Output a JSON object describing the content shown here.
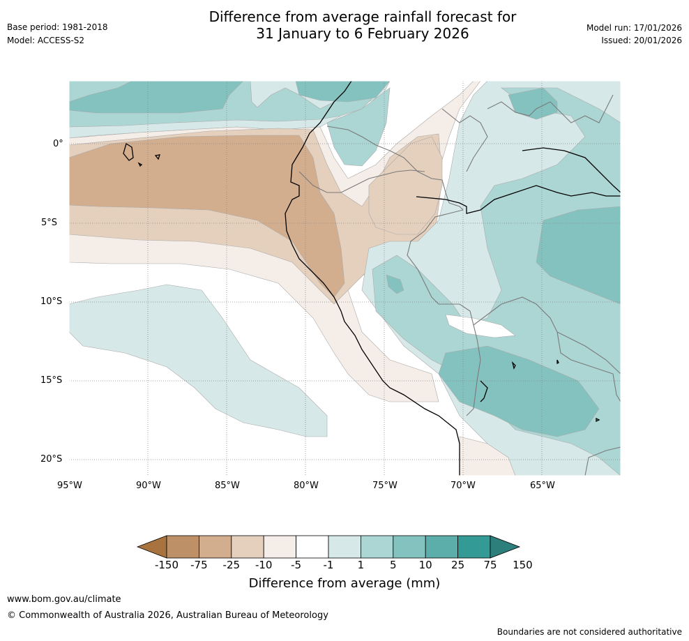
{
  "header": {
    "title_line1": "Difference from average rainfall forecast for",
    "title_line2": "31 January to 6 February 2026",
    "base_period": "Base period: 1981-2018",
    "model": "Model: ACCESS-S2",
    "model_run": "Model run: 17/01/2026",
    "issued": "Issued: 20/01/2026"
  },
  "map": {
    "region": "Western South America / Eastern Pacific",
    "lat_labels": [
      "0°",
      "5°S",
      "10°S",
      "15°S",
      "20°S"
    ],
    "lon_labels": [
      "95°W",
      "90°W",
      "85°W",
      "80°W",
      "75°W",
      "70°W",
      "65°W"
    ]
  },
  "legend": {
    "ticks": [
      "-150",
      "-75",
      "-25",
      "-10",
      "-5",
      "-1",
      "1",
      "5",
      "10",
      "25",
      "75",
      "150"
    ],
    "colors": [
      "#a8733e",
      "#be9068",
      "#d2ae8e",
      "#e5d0bd",
      "#f5ede7",
      "#ffffff",
      "#d6e9e8",
      "#acd6d4",
      "#84c2bf",
      "#5caeaa",
      "#349a96",
      "#2d7f7c"
    ],
    "label": "Difference from average (mm)"
  },
  "footer": {
    "url": "www.bom.gov.au/climate",
    "copyright": "© Commonwealth of Australia 2026, Australian Bureau of Meteorology",
    "disclaimer": "Boundaries are not considered authoritative"
  }
}
